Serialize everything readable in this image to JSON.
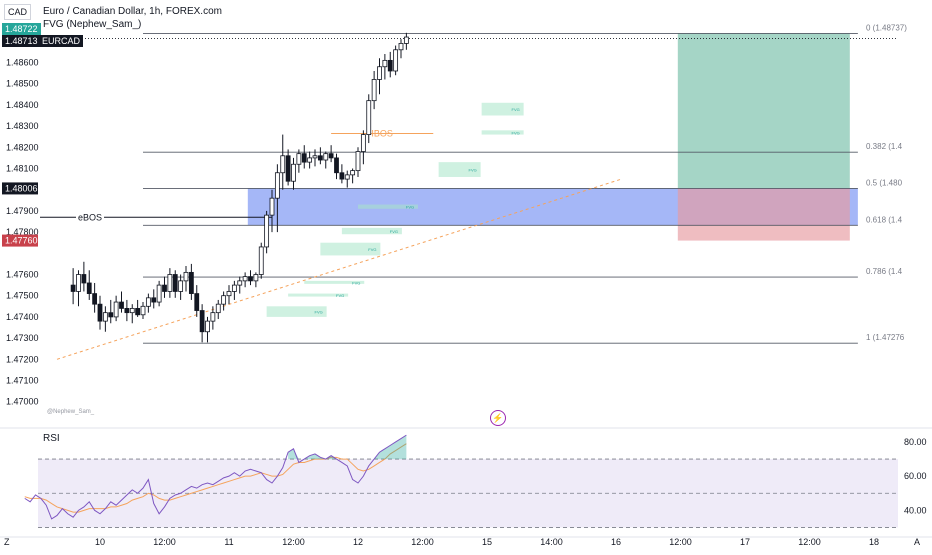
{
  "header": {
    "currency_badge": "CAD",
    "title": "Euro / Canadian Dollar, 1h, FOREX.com",
    "indicator": "FVG (Nephew_Sam_)",
    "price_tag_1": "1.48722",
    "price_tag_2": "1.48713",
    "symbol_tag": "EURCAD",
    "watermark": "@Nephew_Sam_"
  },
  "price_axis": {
    "ticks": [
      "1.48600",
      "1.48500",
      "1.48400",
      "1.48300",
      "1.48200",
      "1.48100",
      "1.47900",
      "1.47800",
      "1.47600",
      "1.47500",
      "1.47400",
      "1.47300",
      "1.47200",
      "1.47100",
      "1.47000"
    ],
    "tick_values": [
      1.486,
      1.485,
      1.484,
      1.483,
      1.482,
      1.481,
      1.479,
      1.478,
      1.476,
      1.475,
      1.474,
      1.473,
      1.472,
      1.471,
      1.47
    ],
    "highlight_1": {
      "label": "1.48006",
      "value": 1.48006,
      "color": "#131722"
    },
    "highlight_2": {
      "label": "1.47760",
      "value": 1.4776,
      "color": "#c8414b"
    }
  },
  "time_axis": {
    "labels": [
      "10",
      "12:00",
      "11",
      "12:00",
      "12",
      "12:00",
      "15",
      "14:00",
      "16",
      "12:00",
      "17",
      "12:00",
      "18"
    ],
    "positions": [
      0,
      12,
      24,
      36,
      48,
      60,
      72,
      84,
      96,
      108,
      120,
      132,
      144
    ],
    "corner_left": "Z",
    "corner_right": "A"
  },
  "fib": {
    "levels": [
      {
        "ratio": 0,
        "label": "0 (1.48737)",
        "price": 1.48737
      },
      {
        "ratio": 0.382,
        "label": "0.382 (1.4",
        "price": 1.48177
      },
      {
        "ratio": 0.5,
        "label": "0.5 (1.480",
        "price": 1.48006
      },
      {
        "ratio": 0.618,
        "label": "0.618 (1.4",
        "price": 1.47832
      },
      {
        "ratio": 0.786,
        "label": "0.786 (1.4",
        "price": 1.47588
      },
      {
        "ratio": 1,
        "label": "1 (1.47276",
        "price": 1.47276
      }
    ]
  },
  "annotations": {
    "ibos": {
      "label": "IBOS",
      "price": 1.48265,
      "color": "#f5a35c"
    },
    "ebos": {
      "label": "eBOS",
      "price": 1.4787,
      "color": "#131722"
    },
    "fvg_label": "FVG"
  },
  "zones": {
    "blue_box": {
      "top": 1.48006,
      "bottom": 1.47832,
      "color": "#5b7cf0"
    },
    "tp_box": {
      "top": 1.48737,
      "bottom": 1.48006,
      "color": "#74bfa8"
    },
    "sl_box": {
      "top": 1.48006,
      "bottom": 1.4776,
      "color": "#e79aa0"
    }
  },
  "fvg_zones": [
    {
      "top": 1.4841,
      "bottom": 1.4835,
      "x_start": 71
    },
    {
      "top": 1.4828,
      "bottom": 1.4826,
      "x_start": 71
    },
    {
      "top": 1.4813,
      "bottom": 1.4806,
      "x_start": 63
    },
    {
      "top": 1.4793,
      "bottom": 1.4791,
      "x_start": 48
    },
    {
      "top": 1.4782,
      "bottom": 1.4779,
      "x_start": 45
    },
    {
      "top": 1.4775,
      "bottom": 1.4769,
      "x_start": 41
    },
    {
      "top": 1.4757,
      "bottom": 1.4756,
      "x_start": 38
    },
    {
      "top": 1.4751,
      "bottom": 1.475,
      "x_start": 35
    },
    {
      "top": 1.4745,
      "bottom": 1.474,
      "x_start": 31
    }
  ],
  "chart_data": {
    "type": "candlestick",
    "x_unit": "hourly bar index (0 = 10 Feb 00:00)",
    "ylim": [
      1.4693,
      1.4877
    ],
    "candles": [
      {
        "t": -5,
        "o": 1.4755,
        "h": 1.4763,
        "l": 1.4746,
        "c": 1.4752
      },
      {
        "t": -4,
        "o": 1.4752,
        "h": 1.4762,
        "l": 1.4745,
        "c": 1.476
      },
      {
        "t": -3,
        "o": 1.476,
        "h": 1.4766,
        "l": 1.4752,
        "c": 1.4756
      },
      {
        "t": -2,
        "o": 1.4756,
        "h": 1.4762,
        "l": 1.4748,
        "c": 1.4751
      },
      {
        "t": -1,
        "o": 1.4751,
        "h": 1.4756,
        "l": 1.4742,
        "c": 1.4746
      },
      {
        "t": 0,
        "o": 1.4746,
        "h": 1.475,
        "l": 1.4734,
        "c": 1.4738
      },
      {
        "t": 1,
        "o": 1.4738,
        "h": 1.4745,
        "l": 1.4733,
        "c": 1.4742
      },
      {
        "t": 2,
        "o": 1.4742,
        "h": 1.4748,
        "l": 1.4737,
        "c": 1.474
      },
      {
        "t": 3,
        "o": 1.474,
        "h": 1.475,
        "l": 1.4738,
        "c": 1.4747
      },
      {
        "t": 4,
        "o": 1.4747,
        "h": 1.4752,
        "l": 1.4742,
        "c": 1.4744
      },
      {
        "t": 5,
        "o": 1.4744,
        "h": 1.4748,
        "l": 1.4738,
        "c": 1.4742
      },
      {
        "t": 6,
        "o": 1.4742,
        "h": 1.4746,
        "l": 1.4737,
        "c": 1.4744
      },
      {
        "t": 7,
        "o": 1.4744,
        "h": 1.4748,
        "l": 1.474,
        "c": 1.4741
      },
      {
        "t": 8,
        "o": 1.4741,
        "h": 1.4747,
        "l": 1.4739,
        "c": 1.4745
      },
      {
        "t": 9,
        "o": 1.4745,
        "h": 1.4751,
        "l": 1.4742,
        "c": 1.4749
      },
      {
        "t": 10,
        "o": 1.4749,
        "h": 1.4753,
        "l": 1.4744,
        "c": 1.4747
      },
      {
        "t": 11,
        "o": 1.4747,
        "h": 1.4757,
        "l": 1.4745,
        "c": 1.4755
      },
      {
        "t": 12,
        "o": 1.4755,
        "h": 1.4759,
        "l": 1.4749,
        "c": 1.4752
      },
      {
        "t": 13,
        "o": 1.4752,
        "h": 1.4763,
        "l": 1.4749,
        "c": 1.476
      },
      {
        "t": 14,
        "o": 1.476,
        "h": 1.4762,
        "l": 1.4749,
        "c": 1.4752
      },
      {
        "t": 15,
        "o": 1.4752,
        "h": 1.476,
        "l": 1.4748,
        "c": 1.4757
      },
      {
        "t": 16,
        "o": 1.4757,
        "h": 1.4764,
        "l": 1.4752,
        "c": 1.4761
      },
      {
        "t": 17,
        "o": 1.4761,
        "h": 1.4765,
        "l": 1.4748,
        "c": 1.4751
      },
      {
        "t": 18,
        "o": 1.4751,
        "h": 1.4755,
        "l": 1.474,
        "c": 1.4743
      },
      {
        "t": 19,
        "o": 1.4743,
        "h": 1.4746,
        "l": 1.4728,
        "c": 1.4733
      },
      {
        "t": 20,
        "o": 1.4733,
        "h": 1.474,
        "l": 1.4728,
        "c": 1.4738
      },
      {
        "t": 21,
        "o": 1.4738,
        "h": 1.4745,
        "l": 1.4734,
        "c": 1.4742
      },
      {
        "t": 22,
        "o": 1.4742,
        "h": 1.4748,
        "l": 1.4739,
        "c": 1.4746
      },
      {
        "t": 23,
        "o": 1.4746,
        "h": 1.4752,
        "l": 1.4743,
        "c": 1.475
      },
      {
        "t": 24,
        "o": 1.475,
        "h": 1.4755,
        "l": 1.4746,
        "c": 1.4752
      },
      {
        "t": 25,
        "o": 1.4752,
        "h": 1.4757,
        "l": 1.4748,
        "c": 1.4755
      },
      {
        "t": 26,
        "o": 1.4755,
        "h": 1.4759,
        "l": 1.4751,
        "c": 1.4757
      },
      {
        "t": 27,
        "o": 1.4757,
        "h": 1.4761,
        "l": 1.4754,
        "c": 1.4759
      },
      {
        "t": 28,
        "o": 1.4759,
        "h": 1.4762,
        "l": 1.4755,
        "c": 1.4757
      },
      {
        "t": 29,
        "o": 1.4757,
        "h": 1.4761,
        "l": 1.4754,
        "c": 1.476
      },
      {
        "t": 30,
        "o": 1.476,
        "h": 1.4775,
        "l": 1.4758,
        "c": 1.4773
      },
      {
        "t": 31,
        "o": 1.4773,
        "h": 1.479,
        "l": 1.477,
        "c": 1.4788
      },
      {
        "t": 32,
        "o": 1.4788,
        "h": 1.48,
        "l": 1.478,
        "c": 1.4796
      },
      {
        "t": 33,
        "o": 1.4796,
        "h": 1.4812,
        "l": 1.478,
        "c": 1.4808
      },
      {
        "t": 34,
        "o": 1.4808,
        "h": 1.4826,
        "l": 1.48,
        "c": 1.4816
      },
      {
        "t": 35,
        "o": 1.4816,
        "h": 1.4819,
        "l": 1.4802,
        "c": 1.4804
      },
      {
        "t": 36,
        "o": 1.4804,
        "h": 1.4815,
        "l": 1.48,
        "c": 1.4812
      },
      {
        "t": 37,
        "o": 1.4812,
        "h": 1.4819,
        "l": 1.4808,
        "c": 1.4817
      },
      {
        "t": 38,
        "o": 1.4817,
        "h": 1.4821,
        "l": 1.481,
        "c": 1.4813
      },
      {
        "t": 39,
        "o": 1.4813,
        "h": 1.4818,
        "l": 1.481,
        "c": 1.4815
      },
      {
        "t": 40,
        "o": 1.4815,
        "h": 1.4819,
        "l": 1.4811,
        "c": 1.4816
      },
      {
        "t": 41,
        "o": 1.4816,
        "h": 1.482,
        "l": 1.4812,
        "c": 1.4814
      },
      {
        "t": 42,
        "o": 1.4814,
        "h": 1.4818,
        "l": 1.481,
        "c": 1.4817
      },
      {
        "t": 43,
        "o": 1.4817,
        "h": 1.4821,
        "l": 1.4813,
        "c": 1.4815
      },
      {
        "t": 44,
        "o": 1.4815,
        "h": 1.4817,
        "l": 1.4805,
        "c": 1.4808
      },
      {
        "t": 45,
        "o": 1.4808,
        "h": 1.4812,
        "l": 1.4803,
        "c": 1.4805
      },
      {
        "t": 46,
        "o": 1.4805,
        "h": 1.4809,
        "l": 1.4801,
        "c": 1.4807
      },
      {
        "t": 47,
        "o": 1.4807,
        "h": 1.481,
        "l": 1.4803,
        "c": 1.4809
      },
      {
        "t": 48,
        "o": 1.4809,
        "h": 1.482,
        "l": 1.4806,
        "c": 1.4818
      },
      {
        "t": 49,
        "o": 1.4818,
        "h": 1.4828,
        "l": 1.4812,
        "c": 1.4826
      },
      {
        "t": 50,
        "o": 1.4826,
        "h": 1.4845,
        "l": 1.4822,
        "c": 1.4842
      },
      {
        "t": 51,
        "o": 1.4842,
        "h": 1.4856,
        "l": 1.4838,
        "c": 1.4852
      },
      {
        "t": 52,
        "o": 1.4852,
        "h": 1.4862,
        "l": 1.4845,
        "c": 1.4858
      },
      {
        "t": 53,
        "o": 1.4858,
        "h": 1.4864,
        "l": 1.4852,
        "c": 1.4861
      },
      {
        "t": 54,
        "o": 1.4861,
        "h": 1.4865,
        "l": 1.4853,
        "c": 1.4856
      },
      {
        "t": 55,
        "o": 1.4856,
        "h": 1.4868,
        "l": 1.4854,
        "c": 1.4866
      },
      {
        "t": 56,
        "o": 1.4866,
        "h": 1.4871,
        "l": 1.4862,
        "c": 1.4869
      },
      {
        "t": 57,
        "o": 1.4869,
        "h": 1.4874,
        "l": 1.4866,
        "c": 1.4872
      }
    ],
    "trendline": {
      "from": {
        "t": -8,
        "price": 1.472
      },
      "to": {
        "t": 97,
        "price": 1.4805
      },
      "color": "#f5a35c"
    },
    "rsi": {
      "title": "RSI",
      "ticks": [
        "80.00",
        "60.00",
        "40.00"
      ],
      "tick_values": [
        80,
        60,
        40
      ],
      "band": [
        30,
        70
      ],
      "midline": 50,
      "ylim": [
        25,
        87
      ],
      "values": [
        47,
        45,
        49,
        47,
        43,
        35,
        37,
        41,
        38,
        36,
        40,
        42,
        45,
        40,
        38,
        41,
        45,
        43,
        46,
        49,
        52,
        50,
        53,
        58,
        44,
        38,
        42,
        47,
        49,
        50,
        52,
        54,
        53,
        55,
        56,
        55,
        57,
        59,
        60,
        62,
        60,
        63,
        64,
        63,
        62,
        58,
        56,
        60,
        65,
        74,
        76,
        68,
        70,
        72,
        73,
        71,
        70,
        72,
        70,
        68,
        66,
        58,
        56,
        60,
        66,
        70,
        74,
        76,
        78,
        80,
        82,
        84
      ],
      "signal": [
        48,
        47,
        47,
        47,
        46,
        44,
        42,
        41,
        40,
        39,
        39,
        40,
        41,
        41,
        41,
        41,
        42,
        42,
        43,
        44,
        46,
        47,
        48,
        50,
        49,
        47,
        46,
        46,
        47,
        48,
        49,
        50,
        51,
        52,
        53,
        54,
        55,
        56,
        57,
        58,
        59,
        60,
        60,
        61,
        62,
        61,
        60,
        60,
        61,
        64,
        67,
        68,
        68,
        69,
        70,
        70,
        70,
        71,
        71,
        70,
        70,
        67,
        64,
        63,
        64,
        66,
        68,
        70,
        73,
        75,
        77,
        79
      ]
    }
  }
}
